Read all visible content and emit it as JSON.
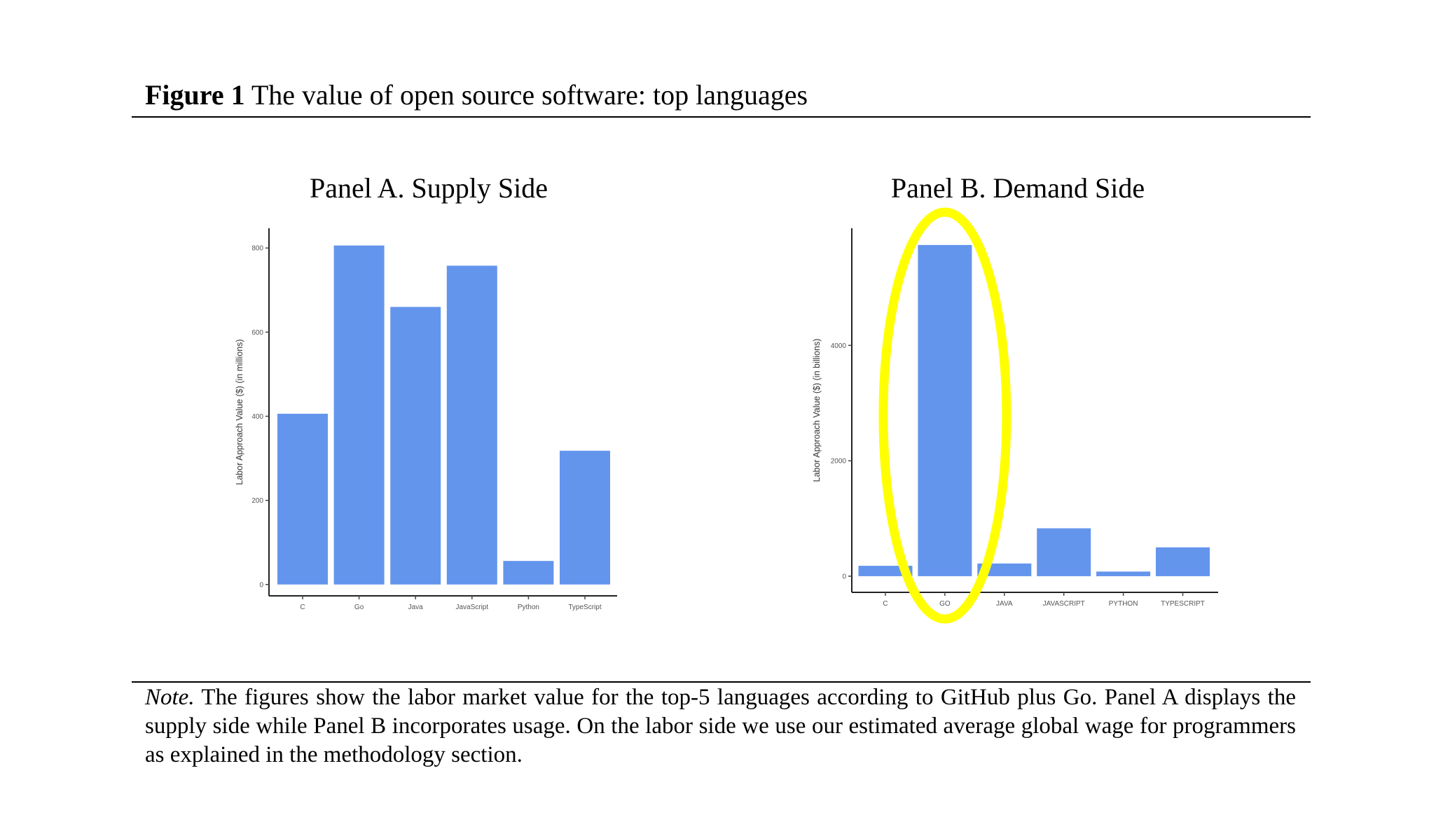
{
  "figure": {
    "label": "Figure 1",
    "title": "The value of open source software: top languages"
  },
  "note": {
    "label": "Note.",
    "text": "The figures show the labor market value for the top-5 languages according to GitHub plus Go. Panel A displays the supply side while Panel B incorporates usage. On the labor side we use our estimated average global wage for programmers as explained in the methodology section."
  },
  "highlight_color": "#FFFF00",
  "chart_data": [
    {
      "type": "bar",
      "title": "Panel A. Supply Side",
      "ylabel": "Labor Approach Value ($) (in millions)",
      "xlabel": "",
      "categories": [
        "C",
        "Go",
        "Java",
        "JavaScript",
        "Python",
        "TypeScript"
      ],
      "values": [
        406,
        806,
        660,
        758,
        56,
        318
      ],
      "yticks": [
        0,
        200,
        400,
        600,
        800
      ],
      "ylim": [
        -27,
        847
      ],
      "grid": false,
      "bar_color": "#6495ED"
    },
    {
      "type": "bar",
      "title": "Panel B. Demand Side",
      "ylabel": "Labor Approach Value ($) (in billions)",
      "xlabel": "",
      "categories": [
        "C",
        "GO",
        "JAVA",
        "JAVASCRIPT",
        "PYTHON",
        "TYPESCRIPT"
      ],
      "values": [
        180,
        5740,
        220,
        830,
        80,
        500
      ],
      "yticks": [
        0,
        2000,
        4000
      ],
      "ylim": [
        -280,
        6030
      ],
      "grid": false,
      "bar_color": "#6495ED",
      "highlighted_category": "GO"
    }
  ]
}
